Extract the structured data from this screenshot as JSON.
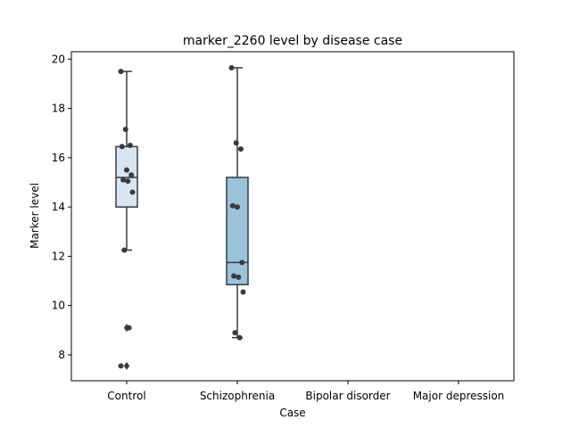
{
  "chart_data": {
    "type": "box",
    "title": "marker_2260 level by disease case",
    "xlabel": "Case",
    "ylabel": "Marker level",
    "categories": [
      "Control",
      "Schizophrenia",
      "Bipolar disorder",
      "Major depression"
    ],
    "ylim": [
      6.95,
      20.3
    ],
    "yticks": [
      8,
      10,
      12,
      14,
      16,
      18,
      20
    ],
    "grid": false,
    "boxes": [
      {
        "category": "Control",
        "color": "#d6e6f4",
        "q1": 14.0,
        "median": 15.2,
        "q3": 16.45,
        "whisker_low": 12.25,
        "whisker_high": 19.5,
        "outliers": [
          9.1,
          7.55
        ],
        "points": [
          19.5,
          17.15,
          16.5,
          16.45,
          15.5,
          15.3,
          15.1,
          15.05,
          14.6,
          12.25,
          9.1,
          7.55
        ]
      },
      {
        "category": "Schizophrenia",
        "color": "#9ac3dc",
        "q1": 10.85,
        "median": 11.75,
        "q3": 15.2,
        "whisker_low": 8.7,
        "whisker_high": 19.65,
        "outliers": [],
        "points": [
          19.65,
          16.6,
          16.35,
          14.05,
          14.0,
          11.75,
          11.2,
          11.15,
          10.55,
          8.9,
          8.7
        ]
      }
    ]
  }
}
